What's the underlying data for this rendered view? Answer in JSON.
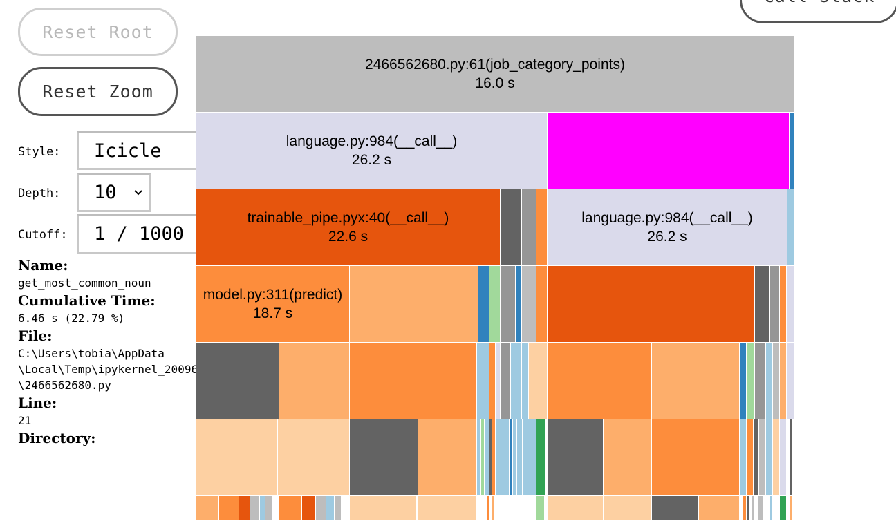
{
  "controls": {
    "reset_root_label": "Reset Root",
    "reset_zoom_label": "Reset Zoom",
    "call_stack_label": "Call Stack",
    "style_label": "Style:",
    "style_value": "Icicle",
    "depth_label": "Depth:",
    "depth_value": "10",
    "cutoff_label": "Cutoff:",
    "cutoff_value": "1 / 1000",
    "dropdown_icon": "chevron-down-icon"
  },
  "info": {
    "name_label": "Name:",
    "name_value": "get_most_common_noun",
    "cumtime_label": "Cumulative Time:",
    "cumtime_value": "6.46 s (22.79 %)",
    "file_label": "File:",
    "file_value": "C:\\Users\\tobia\\AppData\n\\Local\\Temp\\ipykernel_20096\n\\2466562680.py",
    "line_label": "Line:",
    "line_value": "21",
    "directory_label": "Directory:",
    "directory_value": ""
  },
  "icicle": {
    "labels": {
      "root_name": "2466562680.py:61(job_category_points)",
      "root_time": "16.0 s",
      "lang1_name": "language.py:984(__call__)",
      "lang1_time": "26.2 s",
      "pipe_name": "trainable_pipe.pyx:40(__call__)",
      "pipe_time": "22.6 s",
      "lang2_name": "language.py:984(__call__)",
      "lang2_time": "26.2 s",
      "model_name": "model.py:311(predict)",
      "model_time": "18.7 s"
    },
    "colors": {
      "root": "#bdbdbd",
      "language": "#dadaeb",
      "highlight": "#ff00ff",
      "dark_orange": "#e6550d",
      "orange": "#fd8d3c",
      "light_orange": "#fdae6b",
      "pale_orange": "#fdd0a2",
      "dark_gray": "#636363",
      "gray": "#969696",
      "light_gray": "#bdbdbd",
      "blue": "#3182bd",
      "light_blue": "#9ecae1",
      "green": "#31a354",
      "light_green": "#a1d99b",
      "lavender": "#dadaeb"
    }
  }
}
